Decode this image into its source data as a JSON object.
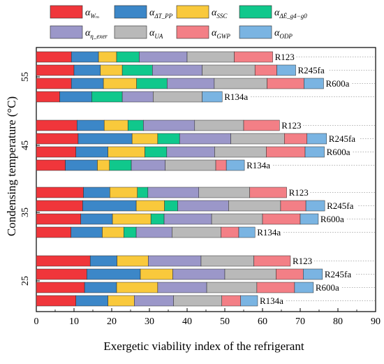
{
  "chart_data": {
    "type": "bar",
    "orientation": "horizontal",
    "stacked": true,
    "xlabel": "Exergetic viability index of the refrigerant",
    "ylabel": "Condensing temperature (°C)",
    "xlim": [
      0,
      90
    ],
    "xticks": [
      0,
      10,
      20,
      30,
      40,
      50,
      60,
      70,
      80,
      90
    ],
    "grid": false,
    "legend_position": "top",
    "temperatures": [
      "55",
      "45",
      "35",
      "25"
    ],
    "refrigerants": [
      "R123",
      "R245fa",
      "R600a",
      "R134a"
    ],
    "series": [
      {
        "key": "W",
        "symbol": "α",
        "sub": "Wₘ",
        "color": "#f0363b"
      },
      {
        "key": "dT",
        "symbol": "α",
        "sub": "ΔT_PP",
        "color": "#3c87c8"
      },
      {
        "key": "SSC",
        "symbol": "α",
        "sub": "SSC",
        "color": "#f9c93c"
      },
      {
        "key": "dE",
        "symbol": "α",
        "sub": "ΔĖ_g4−g0",
        "color": "#10c88c"
      },
      {
        "key": "eta",
        "symbol": "α",
        "sub": "η_exer",
        "color": "#9b97c9"
      },
      {
        "key": "UA",
        "symbol": "α",
        "sub": "UA",
        "color": "#b9b9b9"
      },
      {
        "key": "GWP",
        "symbol": "α",
        "sub": "GWP",
        "color": "#f37f86"
      },
      {
        "key": "ODP",
        "symbol": "α",
        "sub": "ODP",
        "color": "#7ab4e2"
      }
    ],
    "groups": [
      {
        "temperature": "55",
        "bars": [
          {
            "refrigerant": "R123",
            "segments": [
              9.3,
              7.2,
              4.8,
              6.0,
              12.7,
              12.5,
              10.2,
              0
            ]
          },
          {
            "refrigerant": "R245fa",
            "segments": [
              10.0,
              7.0,
              5.8,
              8.0,
              13.2,
              14.0,
              5.8,
              5.0
            ]
          },
          {
            "refrigerant": "R600a",
            "segments": [
              9.3,
              8.5,
              8.8,
              8.1,
              12.5,
              14.0,
              9.8,
              5.2
            ]
          },
          {
            "refrigerant": "R134a",
            "segments": [
              6.2,
              8.5,
              0,
              8.1,
              8.2,
              13.0,
              0,
              5.3
            ]
          }
        ]
      },
      {
        "temperature": "45",
        "bars": [
          {
            "refrigerant": "R123",
            "segments": [
              10.8,
              7.2,
              6.3,
              4.1,
              13.6,
              13.0,
              9.5,
              0
            ]
          },
          {
            "refrigerant": "R245fa",
            "segments": [
              11.1,
              14.3,
              6.8,
              5.8,
              13.6,
              14.2,
              6.0,
              5.2
            ]
          },
          {
            "refrigerant": "R600a",
            "segments": [
              10.5,
              8.5,
              9.8,
              5.8,
              12.7,
              13.7,
              10.3,
              5.1
            ]
          },
          {
            "refrigerant": "R134a",
            "segments": [
              7.7,
              8.5,
              3.2,
              5.8,
              9.0,
              13.4,
              2.8,
              4.8
            ]
          }
        ]
      },
      {
        "temperature": "35",
        "bars": [
          {
            "refrigerant": "R123",
            "segments": [
              12.5,
              7.0,
              7.3,
              2.8,
              13.5,
              13.5,
              9.8,
              0
            ]
          },
          {
            "refrigerant": "R245fa",
            "segments": [
              12.3,
              14.2,
              7.5,
              3.5,
              13.5,
              13.8,
              6.7,
              5.0
            ]
          },
          {
            "refrigerant": "R600a",
            "segments": [
              11.8,
              8.4,
              10.2,
              3.5,
              12.6,
              13.5,
              10.0,
              4.8
            ]
          },
          {
            "refrigerant": "R134a",
            "segments": [
              9.2,
              8.3,
              5.7,
              3.3,
              9.5,
              13.0,
              4.7,
              4.3
            ]
          }
        ]
      },
      {
        "temperature": "25",
        "bars": [
          {
            "refrigerant": "R123",
            "segments": [
              14.3,
              7.1,
              8.3,
              0,
              14.0,
              14.0,
              9.7,
              0
            ]
          },
          {
            "refrigerant": "R245fa",
            "segments": [
              13.4,
              14.2,
              8.6,
              0,
              13.8,
              13.6,
              7.2,
              5.1
            ]
          },
          {
            "refrigerant": "R600a",
            "segments": [
              12.8,
              8.5,
              10.9,
              0,
              13.0,
              13.3,
              10.0,
              5.0
            ]
          },
          {
            "refrigerant": "R134a",
            "segments": [
              10.5,
              8.5,
              7.0,
              0,
              10.4,
              12.8,
              5.0,
              4.5
            ]
          }
        ]
      }
    ]
  }
}
